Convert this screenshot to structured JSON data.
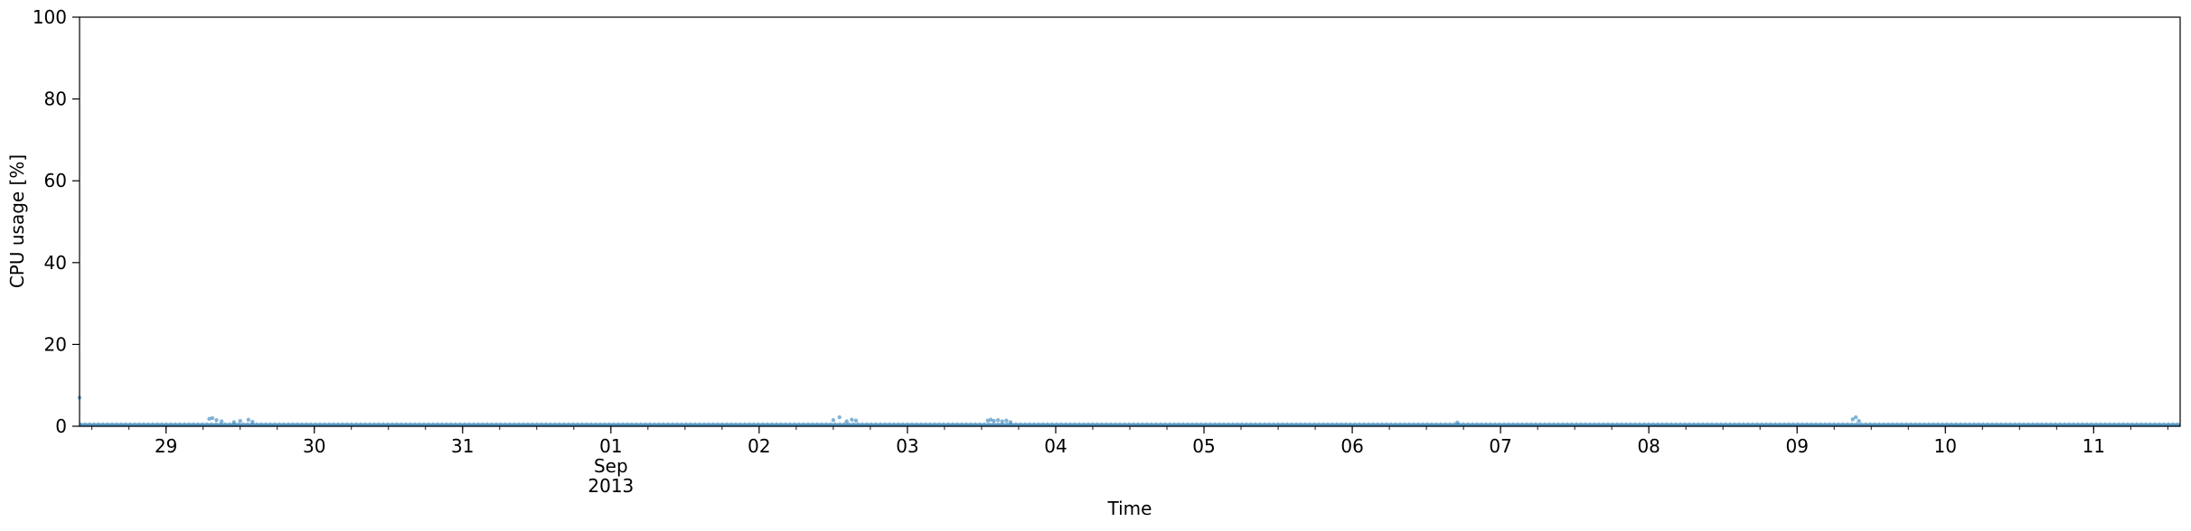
{
  "chart_data": {
    "type": "scatter",
    "title": "",
    "xlabel": "Time",
    "ylabel": "CPU usage [%]",
    "xlim": [
      "2013-08-28T10:00",
      "2013-09-11T14:00"
    ],
    "ylim": [
      0,
      100
    ],
    "y_ticks": [
      0,
      20,
      40,
      60,
      80,
      100
    ],
    "x_ticks": [
      {
        "date": "2013-08-29",
        "label": "29"
      },
      {
        "date": "2013-08-30",
        "label": "30"
      },
      {
        "date": "2013-08-31",
        "label": "31"
      },
      {
        "date": "2013-09-01",
        "label": "01",
        "sublabel": "Sep",
        "sublabel2": "2013"
      },
      {
        "date": "2013-09-02",
        "label": "02"
      },
      {
        "date": "2013-09-03",
        "label": "03"
      },
      {
        "date": "2013-09-04",
        "label": "04"
      },
      {
        "date": "2013-09-05",
        "label": "05"
      },
      {
        "date": "2013-09-06",
        "label": "06"
      },
      {
        "date": "2013-09-07",
        "label": "07"
      },
      {
        "date": "2013-09-08",
        "label": "08"
      },
      {
        "date": "2013-09-09",
        "label": "09"
      },
      {
        "date": "2013-09-10",
        "label": "10"
      },
      {
        "date": "2013-09-11",
        "label": "11"
      }
    ],
    "grid": false,
    "legend": "none",
    "series": [
      {
        "color": "#1f77b4",
        "baseline_value": 0.3,
        "points": [
          {
            "x": "2013-08-28T10:00",
            "y": 7.0
          },
          {
            "x": "2013-08-29T07:00",
            "y": 1.8
          },
          {
            "x": "2013-08-29T07:30",
            "y": 2.0
          },
          {
            "x": "2013-08-29T08:10",
            "y": 1.5
          },
          {
            "x": "2013-08-29T09:00",
            "y": 1.2
          },
          {
            "x": "2013-08-29T11:00",
            "y": 1.0
          },
          {
            "x": "2013-08-29T12:00",
            "y": 1.3
          },
          {
            "x": "2013-08-29T13:20",
            "y": 1.6
          },
          {
            "x": "2013-08-29T14:00",
            "y": 1.1
          },
          {
            "x": "2013-09-02T12:00",
            "y": 1.5
          },
          {
            "x": "2013-09-02T13:00",
            "y": 2.2
          },
          {
            "x": "2013-09-02T14:10",
            "y": 1.2
          },
          {
            "x": "2013-09-02T15:00",
            "y": 1.6
          },
          {
            "x": "2013-09-02T15:40",
            "y": 1.4
          },
          {
            "x": "2013-09-03T13:00",
            "y": 1.4
          },
          {
            "x": "2013-09-03T13:30",
            "y": 1.6
          },
          {
            "x": "2013-09-03T14:00",
            "y": 1.3
          },
          {
            "x": "2013-09-03T14:40",
            "y": 1.5
          },
          {
            "x": "2013-09-03T15:20",
            "y": 1.2
          },
          {
            "x": "2013-09-03T16:00",
            "y": 1.4
          },
          {
            "x": "2013-09-03T16:40",
            "y": 1.0
          },
          {
            "x": "2013-09-06T17:00",
            "y": 0.9
          },
          {
            "x": "2013-09-09T09:00",
            "y": 1.7
          },
          {
            "x": "2013-09-09T09:30",
            "y": 2.2
          },
          {
            "x": "2013-09-09T10:00",
            "y": 1.3
          }
        ]
      }
    ]
  }
}
